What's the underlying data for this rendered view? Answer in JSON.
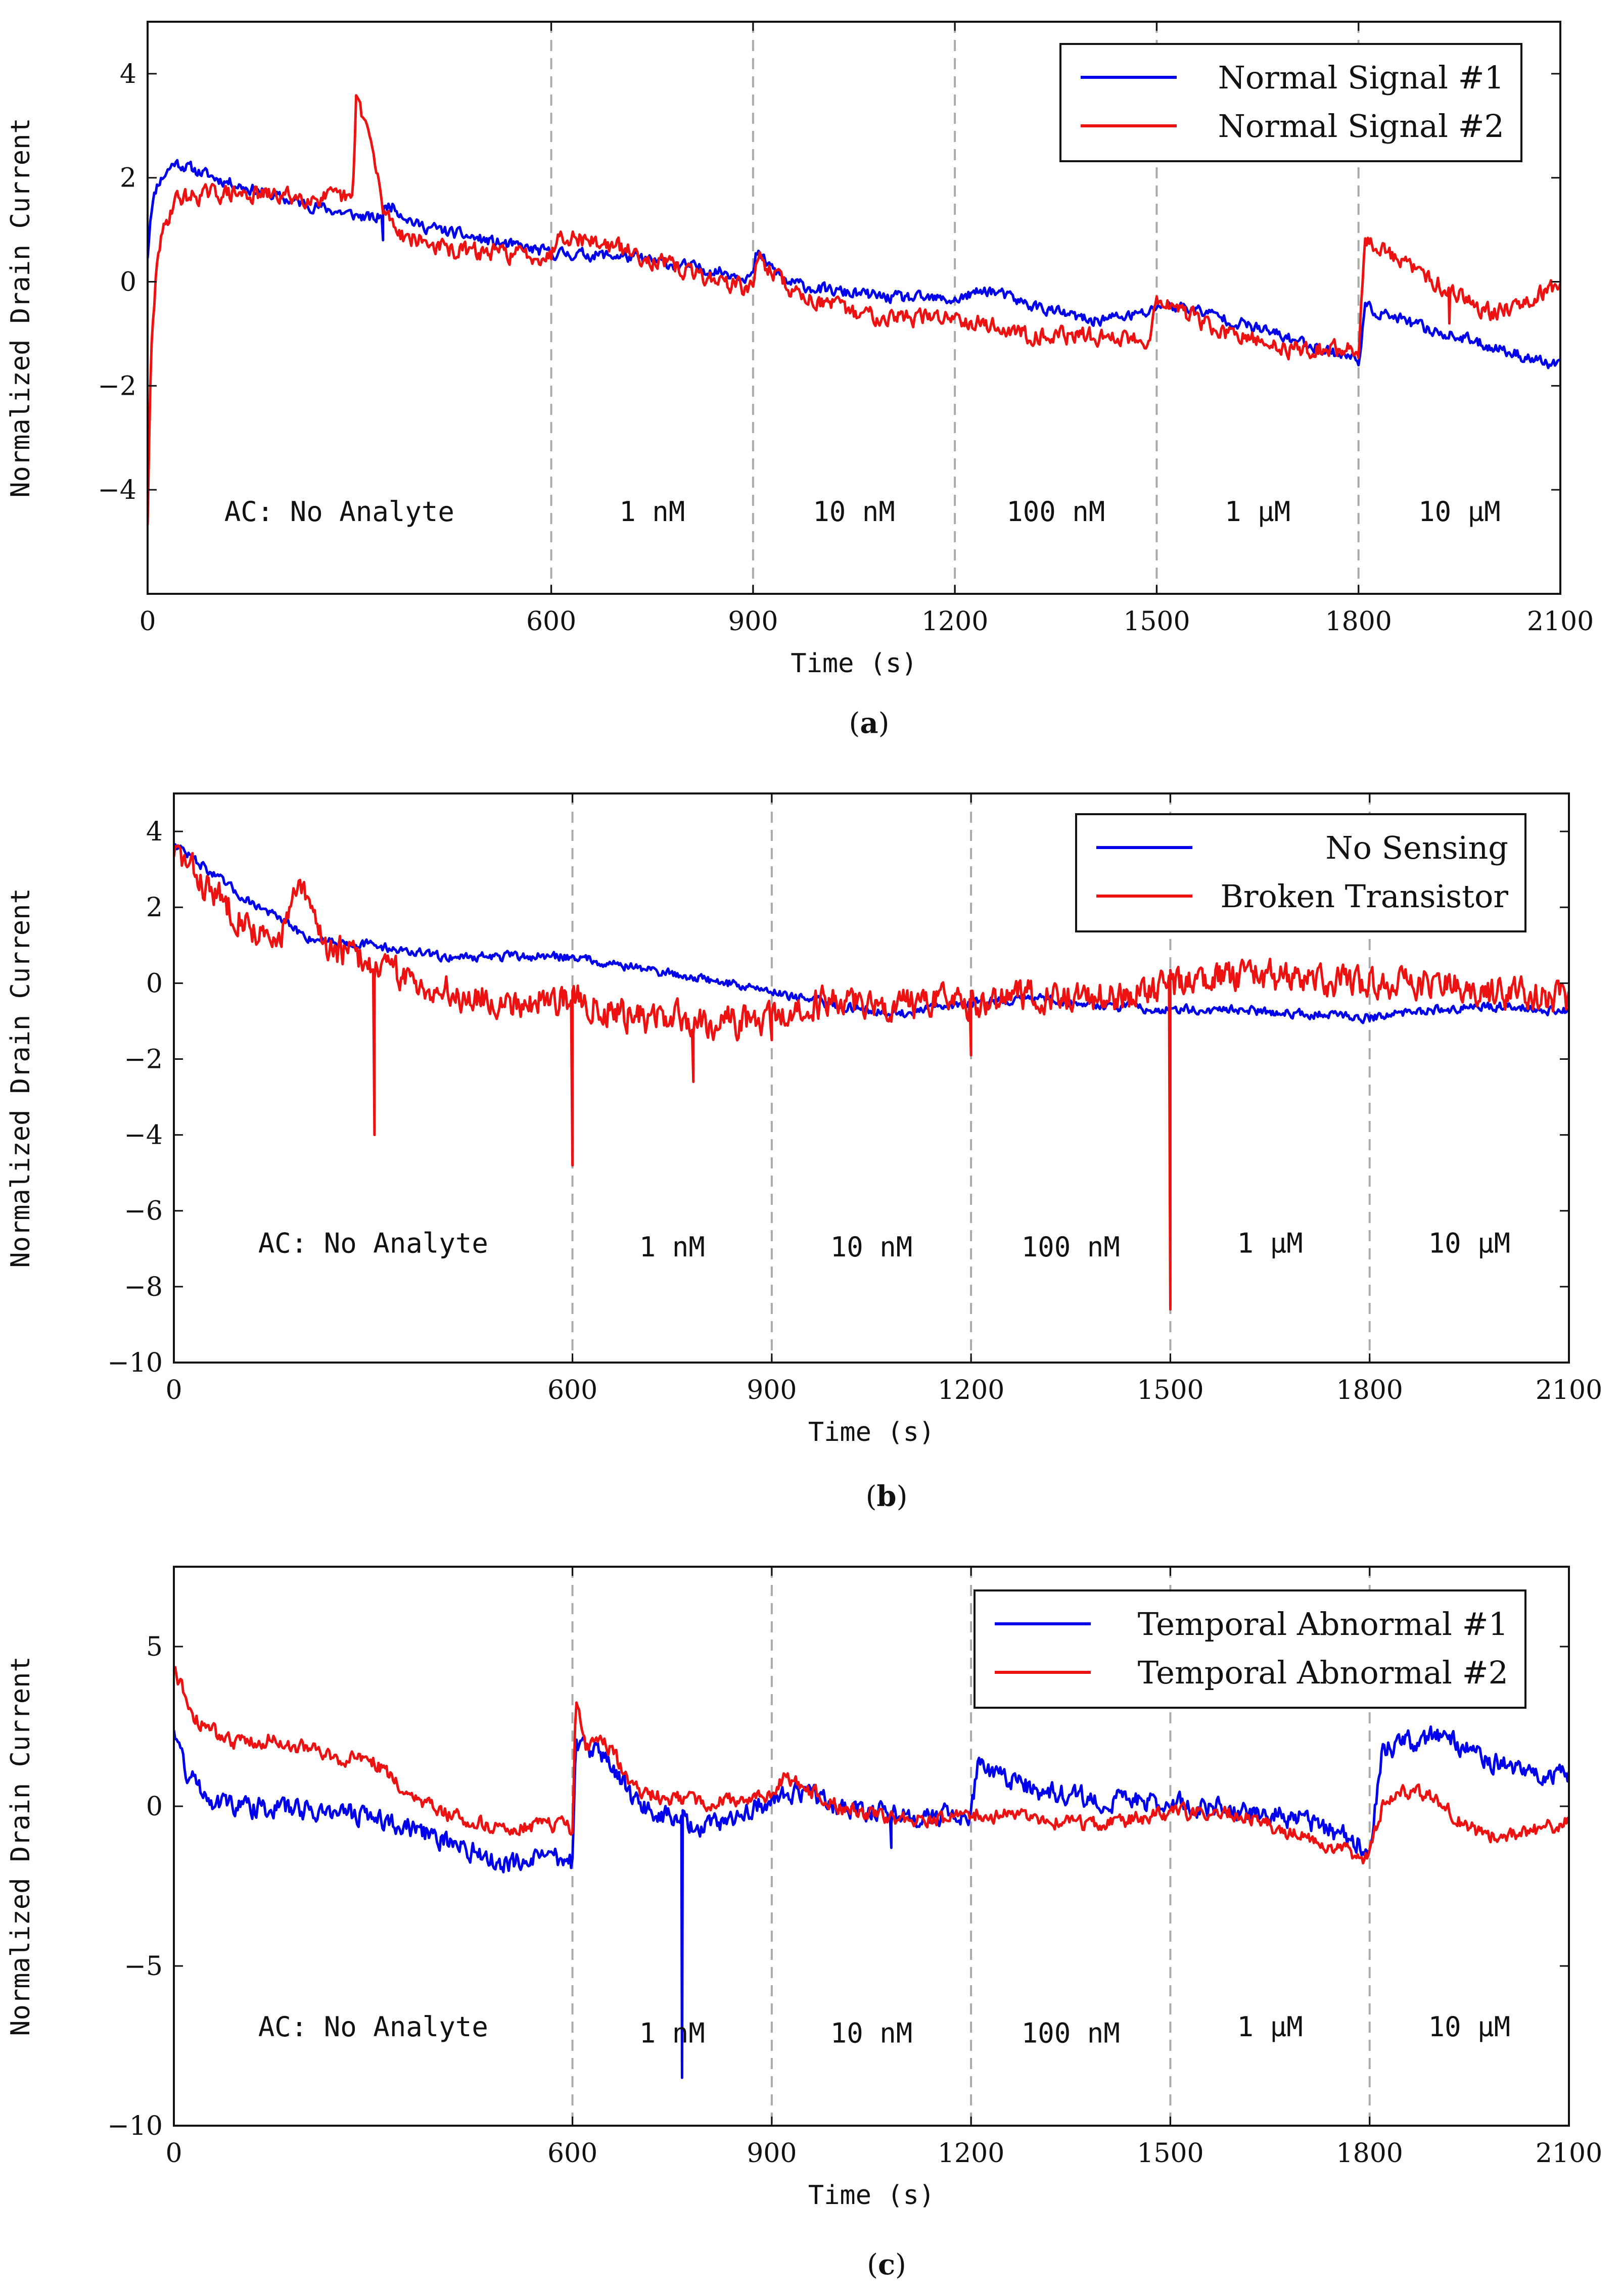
{
  "figure_colors": {
    "series1": "#0000ee",
    "series2": "#ee1111",
    "divider": "#aaaaaa",
    "frame": "#111111"
  },
  "chart_data": [
    {
      "type": "line",
      "panel": "a",
      "caption": "a",
      "xlabel": "Time (s)",
      "ylabel": "Normalized Drain Current",
      "xlim": [
        0,
        2100
      ],
      "ylim": [
        -6,
        5
      ],
      "xticks": [
        0,
        600,
        900,
        1200,
        1500,
        1800,
        2100
      ],
      "xtick_labels": [
        "0",
        "600",
        "900",
        "1200",
        "1500",
        "1800",
        "2100"
      ],
      "yticks": [
        -4,
        -2,
        0,
        2,
        4
      ],
      "ytick_labels": [
        "−4",
        "−2",
        "0",
        "2",
        "4"
      ],
      "dividers": [
        600,
        900,
        1200,
        1500,
        1800
      ],
      "legend_position": "top-right",
      "regions": [
        {
          "label": "AC: No Analyte",
          "x": 285,
          "y": -4.6
        },
        {
          "label": "1 nM",
          "x": 750,
          "y": -4.6
        },
        {
          "label": "10 nM",
          "x": 1050,
          "y": -4.6
        },
        {
          "label": "100 nM",
          "x": 1350,
          "y": -4.6
        },
        {
          "label": "1 μM",
          "x": 1650,
          "y": -4.6
        },
        {
          "label": "10 μM",
          "x": 1950,
          "y": -4.6
        }
      ],
      "series": [
        {
          "name": "Normal Signal #1",
          "color": "#0000ee",
          "noise": 0.12,
          "seed": 11,
          "points": [
            [
              0,
              0.5
            ],
            [
              5,
              1.4
            ],
            [
              15,
              1.9
            ],
            [
              40,
              2.3
            ],
            [
              100,
              2.0
            ],
            [
              200,
              1.6
            ],
            [
              300,
              1.3
            ],
            [
              340,
              1.2
            ],
            [
              360,
              1.5
            ],
            [
              400,
              1.1
            ],
            [
              500,
              0.8
            ],
            [
              600,
              0.55
            ],
            [
              700,
              0.5
            ],
            [
              800,
              0.3
            ],
            [
              900,
              0.1
            ],
            [
              905,
              0.55
            ],
            [
              950,
              0.0
            ],
            [
              1000,
              -0.15
            ],
            [
              1100,
              -0.3
            ],
            [
              1200,
              -0.35
            ],
            [
              1250,
              -0.15
            ],
            [
              1300,
              -0.4
            ],
            [
              1400,
              -0.75
            ],
            [
              1490,
              -0.6
            ],
            [
              1500,
              -0.45
            ],
            [
              1550,
              -0.5
            ],
            [
              1700,
              -1.1
            ],
            [
              1800,
              -1.5
            ],
            [
              1810,
              -0.5
            ],
            [
              1900,
              -0.9
            ],
            [
              2000,
              -1.25
            ],
            [
              2100,
              -1.65
            ]
          ],
          "spikes": [
            [
              350,
              0.8
            ]
          ]
        },
        {
          "name": "Normal Signal #2",
          "color": "#ee1111",
          "noise": 0.18,
          "seed": 29,
          "points": [
            [
              0,
              -4.6
            ],
            [
              5,
              -1.5
            ],
            [
              15,
              0.6
            ],
            [
              40,
              1.6
            ],
            [
              100,
              1.7
            ],
            [
              200,
              1.65
            ],
            [
              300,
              1.6
            ],
            [
              305,
              1.5
            ],
            [
              310,
              3.6
            ],
            [
              330,
              2.8
            ],
            [
              350,
              1.4
            ],
            [
              380,
              0.9
            ],
            [
              450,
              0.6
            ],
            [
              600,
              0.5
            ],
            [
              610,
              0.95
            ],
            [
              700,
              0.65
            ],
            [
              800,
              0.2
            ],
            [
              900,
              -0.15
            ],
            [
              905,
              0.5
            ],
            [
              960,
              -0.2
            ],
            [
              1050,
              -0.6
            ],
            [
              1150,
              -0.7
            ],
            [
              1200,
              -0.65
            ],
            [
              1300,
              -1.0
            ],
            [
              1400,
              -1.05
            ],
            [
              1490,
              -1.1
            ],
            [
              1500,
              -0.3
            ],
            [
              1600,
              -1.0
            ],
            [
              1700,
              -1.3
            ],
            [
              1800,
              -1.3
            ],
            [
              1810,
              0.8
            ],
            [
              1900,
              0.1
            ],
            [
              2000,
              -0.6
            ],
            [
              2100,
              -0.05
            ]
          ],
          "spikes": [
            [
              1685,
              -1.4
            ],
            [
              1935,
              -0.8
            ]
          ]
        }
      ]
    },
    {
      "type": "line",
      "panel": "b",
      "caption": "b",
      "xlabel": "Time (s)",
      "ylabel": "Normalized Drain Current",
      "xlim": [
        0,
        2100
      ],
      "ylim": [
        -10,
        5
      ],
      "xticks": [
        0,
        600,
        900,
        1200,
        1500,
        1800,
        2100
      ],
      "xtick_labels": [
        "0",
        "600",
        "900",
        "1200",
        "1500",
        "1800",
        "2100"
      ],
      "yticks": [
        -10,
        -8,
        -6,
        -4,
        -2,
        0,
        2,
        4
      ],
      "ytick_labels": [
        "−10",
        "−8",
        "−6",
        "−4",
        "−2",
        "0",
        "2",
        "4"
      ],
      "dividers": [
        600,
        900,
        1200,
        1500,
        1800
      ],
      "legend_position": "top-right",
      "regions": [
        {
          "label": "AC: No Analyte",
          "x": 300,
          "y": -7.1
        },
        {
          "label": "1 nM",
          "x": 750,
          "y": -7.2
        },
        {
          "label": "10 nM",
          "x": 1050,
          "y": -7.2
        },
        {
          "label": "100 nM",
          "x": 1350,
          "y": -7.2
        },
        {
          "label": "1 μM",
          "x": 1650,
          "y": -7.1
        },
        {
          "label": "10 μM",
          "x": 1950,
          "y": -7.1
        }
      ],
      "series": [
        {
          "name": "No Sensing",
          "color": "#0000ee",
          "noise": 0.13,
          "seed": 47,
          "points": [
            [
              0,
              3.7
            ],
            [
              50,
              3.0
            ],
            [
              100,
              2.3
            ],
            [
              150,
              1.8
            ],
            [
              200,
              1.2
            ],
            [
              300,
              1.0
            ],
            [
              400,
              0.7
            ],
            [
              500,
              0.7
            ],
            [
              600,
              0.7
            ],
            [
              700,
              0.4
            ],
            [
              800,
              0.1
            ],
            [
              900,
              -0.2
            ],
            [
              1000,
              -0.6
            ],
            [
              1100,
              -0.8
            ],
            [
              1200,
              -0.5
            ],
            [
              1300,
              -0.4
            ],
            [
              1400,
              -0.6
            ],
            [
              1500,
              -0.7
            ],
            [
              1600,
              -0.7
            ],
            [
              1700,
              -0.8
            ],
            [
              1800,
              -0.9
            ],
            [
              1900,
              -0.7
            ],
            [
              2000,
              -0.6
            ],
            [
              2100,
              -0.75
            ]
          ],
          "spikes": []
        },
        {
          "name": "Broken Transistor",
          "color": "#ee1111",
          "noise": 0.45,
          "seed": 83,
          "points": [
            [
              0,
              3.5
            ],
            [
              50,
              2.5
            ],
            [
              100,
              1.8
            ],
            [
              150,
              0.9
            ],
            [
              190,
              2.5
            ],
            [
              230,
              1.0
            ],
            [
              300,
              0.5
            ],
            [
              400,
              -0.2
            ],
            [
              500,
              -0.5
            ],
            [
              600,
              -0.4
            ],
            [
              700,
              -0.9
            ],
            [
              800,
              -1.0
            ],
            [
              900,
              -1.0
            ],
            [
              1000,
              -0.4
            ],
            [
              1100,
              -0.6
            ],
            [
              1200,
              -0.5
            ],
            [
              1300,
              -0.3
            ],
            [
              1400,
              -0.4
            ],
            [
              1500,
              -0.1
            ],
            [
              1600,
              0.2
            ],
            [
              1700,
              0.1
            ],
            [
              1800,
              0.0
            ],
            [
              1900,
              0.0
            ],
            [
              2000,
              -0.3
            ],
            [
              2100,
              -0.4
            ]
          ],
          "spikes": [
            [
              302,
              -4.0
            ],
            [
              600,
              -4.8
            ],
            [
              782,
              -2.6
            ],
            [
              900,
              -1.5
            ],
            [
              1200,
              -1.9
            ],
            [
              1500,
              -8.6
            ]
          ]
        }
      ]
    },
    {
      "type": "line",
      "panel": "c",
      "caption": "c",
      "xlabel": "Time (s)",
      "ylabel": "Normalized Drain Current",
      "xlim": [
        0,
        2100
      ],
      "ylim": [
        -10,
        7.5
      ],
      "xticks": [
        0,
        600,
        900,
        1200,
        1500,
        1800,
        2100
      ],
      "xtick_labels": [
        "0",
        "600",
        "900",
        "1200",
        "1500",
        "1800",
        "2100"
      ],
      "yticks": [
        -10,
        -5,
        0,
        5
      ],
      "ytick_labels": [
        "−10",
        "−5",
        "0",
        "5"
      ],
      "dividers": [
        600,
        900,
        1200,
        1500,
        1800
      ],
      "legend_position": "top-right",
      "regions": [
        {
          "label": "AC: No Analyte",
          "x": 300,
          "y": -7.2
        },
        {
          "label": "1 nM",
          "x": 750,
          "y": -7.4
        },
        {
          "label": "10 nM",
          "x": 1050,
          "y": -7.4
        },
        {
          "label": "100 nM",
          "x": 1350,
          "y": -7.4
        },
        {
          "label": "1 μM",
          "x": 1650,
          "y": -7.2
        },
        {
          "label": "10 μM",
          "x": 1950,
          "y": -7.2
        }
      ],
      "series": [
        {
          "name": "Temporal Abnormal #1",
          "color": "#0000ee",
          "noise": 0.35,
          "seed": 131,
          "points": [
            [
              0,
              2.5
            ],
            [
              20,
              1.0
            ],
            [
              60,
              0.2
            ],
            [
              100,
              0.0
            ],
            [
              200,
              -0.1
            ],
            [
              300,
              -0.3
            ],
            [
              400,
              -1.0
            ],
            [
              500,
              -1.8
            ],
            [
              590,
              -1.6
            ],
            [
              600,
              -1.8
            ],
            [
              605,
              2.0
            ],
            [
              650,
              1.5
            ],
            [
              700,
              0.0
            ],
            [
              800,
              -0.7
            ],
            [
              900,
              0.2
            ],
            [
              950,
              0.5
            ],
            [
              1000,
              0.0
            ],
            [
              1100,
              -0.3
            ],
            [
              1200,
              -0.3
            ],
            [
              1210,
              1.2
            ],
            [
              1300,
              0.5
            ],
            [
              1400,
              0.2
            ],
            [
              1500,
              0.1
            ],
            [
              1600,
              -0.1
            ],
            [
              1700,
              -0.4
            ],
            [
              1800,
              -1.3
            ],
            [
              1820,
              1.8
            ],
            [
              1900,
              2.2
            ],
            [
              2000,
              1.3
            ],
            [
              2100,
              0.9
            ]
          ],
          "spikes": [
            [
              765,
              -8.5
            ],
            [
              1080,
              -1.3
            ]
          ]
        },
        {
          "name": "Temporal Abnormal #2",
          "color": "#ee1111",
          "noise": 0.25,
          "seed": 173,
          "points": [
            [
              0,
              4.3
            ],
            [
              30,
              2.8
            ],
            [
              80,
              2.0
            ],
            [
              150,
              2.1
            ],
            [
              250,
              1.5
            ],
            [
              300,
              1.4
            ],
            [
              350,
              0.5
            ],
            [
              400,
              -0.2
            ],
            [
              500,
              -0.7
            ],
            [
              590,
              -0.6
            ],
            [
              600,
              -0.8
            ],
            [
              605,
              3.5
            ],
            [
              620,
              1.9
            ],
            [
              650,
              2.0
            ],
            [
              700,
              0.4
            ],
            [
              800,
              0.1
            ],
            [
              900,
              0.4
            ],
            [
              920,
              0.9
            ],
            [
              1000,
              0.0
            ],
            [
              1100,
              -0.4
            ],
            [
              1200,
              -0.4
            ],
            [
              1210,
              -0.2
            ],
            [
              1300,
              -0.4
            ],
            [
              1400,
              -0.6
            ],
            [
              1500,
              -0.2
            ],
            [
              1600,
              -0.2
            ],
            [
              1700,
              -1.0
            ],
            [
              1790,
              -1.6
            ],
            [
              1800,
              -1.5
            ],
            [
              1820,
              0.1
            ],
            [
              1850,
              0.5
            ],
            [
              1900,
              0.2
            ],
            [
              1950,
              -0.7
            ],
            [
              2000,
              -1.0
            ],
            [
              2100,
              -0.5
            ]
          ],
          "spikes": []
        }
      ]
    }
  ]
}
